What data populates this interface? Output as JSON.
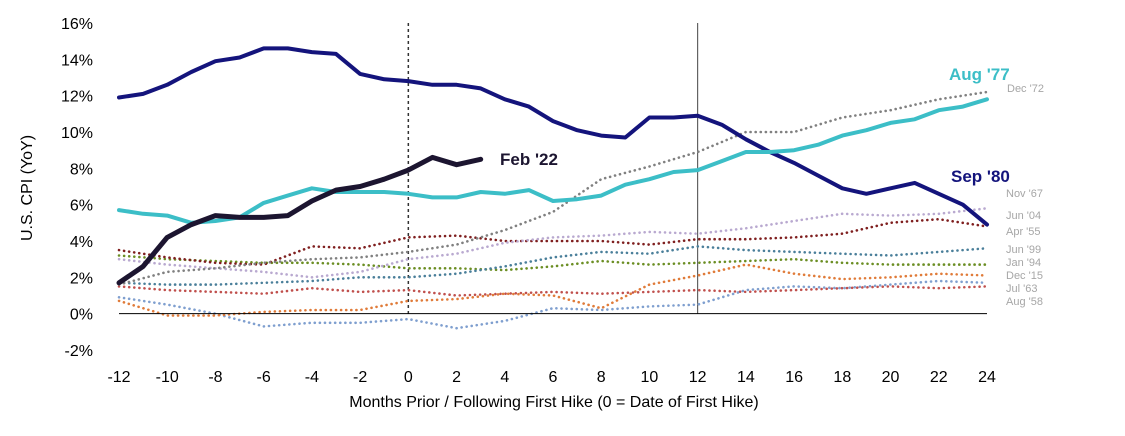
{
  "chart_data": {
    "type": "line",
    "xlabel": "Months Prior / Following First Hike (0 = Date of First Hike)",
    "ylabel": "U.S. CPI (YoY)",
    "xlim": [
      -12,
      24
    ],
    "ylim": [
      -2,
      16
    ],
    "x_ticks": [
      "-12",
      "-10",
      "-8",
      "-6",
      "-4",
      "-2",
      "0",
      "2",
      "4",
      "6",
      "8",
      "10",
      "12",
      "14",
      "16",
      "18",
      "20",
      "22",
      "24"
    ],
    "y_ticks": [
      "-2%",
      "0%",
      "2%",
      "4%",
      "6%",
      "8%",
      "10%",
      "12%",
      "14%",
      "16%"
    ],
    "vertical_markers": [
      0,
      12
    ],
    "grid": false,
    "series": [
      {
        "name": "Aug '58",
        "color": "#7f9fcf",
        "style": "dotted",
        "x": [
          -12,
          -10,
          -8,
          -6,
          -4,
          -2,
          0,
          2,
          4,
          6,
          8,
          10,
          12,
          14,
          16,
          18,
          20,
          22,
          24
        ],
        "y": [
          0.9,
          0.5,
          0.0,
          -0.7,
          -0.5,
          -0.5,
          -0.3,
          -0.8,
          -0.4,
          0.3,
          0.2,
          0.4,
          0.5,
          1.3,
          1.5,
          1.4,
          1.6,
          1.8,
          1.7
        ]
      },
      {
        "name": "Jul '63",
        "color": "#c0504d",
        "style": "dotted",
        "x": [
          -12,
          -10,
          -8,
          -6,
          -4,
          -2,
          0,
          2,
          4,
          6,
          8,
          10,
          12,
          14,
          16,
          18,
          20,
          22,
          24
        ],
        "y": [
          1.5,
          1.3,
          1.2,
          1.1,
          1.4,
          1.2,
          1.3,
          1.0,
          1.1,
          1.2,
          1.1,
          1.2,
          1.3,
          1.2,
          1.3,
          1.4,
          1.5,
          1.4,
          1.5
        ]
      },
      {
        "name": "Dec '15",
        "color": "#e07b39",
        "style": "dotted",
        "x": [
          -12,
          -10,
          -8,
          -6,
          -4,
          -2,
          0,
          2,
          4,
          6,
          8,
          10,
          12,
          14,
          16,
          18,
          20,
          22,
          24
        ],
        "y": [
          0.7,
          -0.1,
          -0.1,
          0.1,
          0.2,
          0.2,
          0.7,
          0.8,
          1.1,
          1.0,
          0.3,
          1.6,
          2.1,
          2.7,
          2.2,
          1.9,
          2.0,
          2.2,
          2.1
        ]
      },
      {
        "name": "Jan '94",
        "color": "#6b8e23",
        "style": "dotted",
        "x": [
          -12,
          -10,
          -8,
          -6,
          -4,
          -2,
          0,
          2,
          4,
          6,
          8,
          10,
          12,
          14,
          16,
          18,
          20,
          22,
          24
        ],
        "y": [
          3.2,
          3.0,
          2.9,
          2.8,
          2.8,
          2.7,
          2.5,
          2.5,
          2.4,
          2.6,
          2.9,
          2.7,
          2.8,
          2.9,
          3.0,
          2.8,
          2.7,
          2.7,
          2.7
        ]
      },
      {
        "name": "Jun '99",
        "color": "#4a7f9a",
        "style": "dotted",
        "x": [
          -12,
          -10,
          -8,
          -6,
          -4,
          -2,
          0,
          2,
          4,
          6,
          8,
          10,
          12,
          14,
          16,
          18,
          20,
          22,
          24
        ],
        "y": [
          1.7,
          1.6,
          1.6,
          1.7,
          1.8,
          2.0,
          2.0,
          2.2,
          2.6,
          3.1,
          3.4,
          3.3,
          3.7,
          3.5,
          3.4,
          3.3,
          3.2,
          3.4,
          3.6
        ]
      },
      {
        "name": "Apr '55",
        "color": "#7f1f1f",
        "style": "dotted",
        "x": [
          -12,
          -10,
          -8,
          -6,
          -4,
          -2,
          0,
          2,
          4,
          6,
          8,
          10,
          12,
          14,
          16,
          18,
          20,
          22,
          24
        ],
        "y": [
          3.5,
          3.1,
          2.8,
          2.7,
          3.7,
          3.6,
          4.2,
          4.3,
          4.0,
          4.0,
          4.0,
          3.8,
          4.1,
          4.1,
          4.2,
          4.4,
          5.0,
          5.2,
          4.8
        ]
      },
      {
        "name": "Jun '04",
        "color": "#b9a9d0",
        "style": "dotted",
        "x": [
          -12,
          -10,
          -8,
          -6,
          -4,
          -2,
          0,
          2,
          4,
          6,
          8,
          10,
          12,
          14,
          16,
          18,
          20,
          22,
          24
        ],
        "y": [
          3.0,
          2.7,
          2.5,
          2.3,
          2.0,
          2.3,
          3.0,
          3.3,
          3.9,
          4.2,
          4.3,
          4.5,
          4.4,
          4.7,
          5.1,
          5.5,
          5.4,
          5.5,
          5.8
        ]
      },
      {
        "name": "Nov '67",
        "color": "#808080",
        "style": "dotted",
        "x": [
          -12,
          -10,
          -8,
          -6,
          -4,
          -2,
          0,
          2,
          4,
          6,
          8,
          10,
          12,
          14,
          16,
          18,
          20,
          22,
          24
        ],
        "y": [
          1.6,
          2.3,
          2.5,
          2.8,
          3.0,
          3.1,
          3.4,
          3.8,
          4.6,
          5.6,
          7.4,
          8.1,
          8.9,
          10.0,
          10.0,
          10.8,
          11.2,
          11.8,
          12.2
        ]
      },
      {
        "name": "Sep '80",
        "color": "#14147c",
        "style": "solid",
        "width": 4,
        "x": [
          -12,
          -11,
          -10,
          -9,
          -8,
          -7,
          -6,
          -5,
          -4,
          -3,
          -2,
          -1,
          0,
          1,
          2,
          3,
          4,
          5,
          6,
          7,
          8,
          9,
          10,
          11,
          12,
          13,
          14,
          15,
          16,
          17,
          18,
          19,
          20,
          21,
          22,
          23,
          24
        ],
        "y": [
          11.9,
          12.1,
          12.6,
          13.3,
          13.9,
          14.1,
          14.6,
          14.6,
          14.4,
          14.3,
          13.2,
          12.9,
          12.8,
          12.6,
          12.6,
          12.4,
          11.8,
          11.4,
          10.6,
          10.1,
          9.8,
          9.7,
          10.8,
          10.8,
          10.9,
          10.4,
          9.6,
          8.9,
          8.3,
          7.6,
          6.9,
          6.6,
          6.9,
          7.2,
          6.6,
          6.0,
          4.9
        ]
      },
      {
        "name": "Aug '77",
        "color": "#3cbec7",
        "style": "solid",
        "width": 4,
        "x": [
          -12,
          -11,
          -10,
          -9,
          -8,
          -7,
          -6,
          -5,
          -4,
          -3,
          -2,
          -1,
          0,
          1,
          2,
          3,
          4,
          5,
          6,
          7,
          8,
          9,
          10,
          11,
          12,
          13,
          14,
          15,
          16,
          17,
          18,
          19,
          20,
          21,
          22,
          23,
          24
        ],
        "y": [
          5.7,
          5.5,
          5.4,
          5.0,
          5.1,
          5.3,
          6.1,
          6.5,
          6.9,
          6.7,
          6.7,
          6.7,
          6.6,
          6.4,
          6.4,
          6.7,
          6.6,
          6.8,
          6.2,
          6.3,
          6.5,
          7.1,
          7.4,
          7.8,
          7.9,
          8.4,
          8.9,
          8.9,
          9.0,
          9.3,
          9.8,
          10.1,
          10.5,
          10.7,
          11.2,
          11.4,
          11.8
        ]
      },
      {
        "name": "Feb '22",
        "color": "#1c1530",
        "style": "solid",
        "width": 5,
        "x": [
          -12,
          -11,
          -10,
          -9,
          -8,
          -7,
          -6,
          -5,
          -4,
          -3,
          -2,
          -1,
          0,
          1,
          2,
          3
        ],
        "y": [
          1.7,
          2.6,
          4.2,
          4.9,
          5.4,
          5.3,
          5.3,
          5.4,
          6.2,
          6.8,
          7.0,
          7.4,
          7.9,
          8.6,
          8.2,
          8.5
        ]
      }
    ],
    "labels": {
      "feb22": "Feb '22",
      "aug77": "Aug '77",
      "sep80": "Sep '80",
      "dec72": "Dec '72",
      "nov67": "Nov '67",
      "jun04": "Jun '04",
      "apr55": "Apr '55",
      "jun99": "Jun '99",
      "jan94": "Jan '94",
      "dec15": "Dec '15",
      "jul63": "Jul '63",
      "aug58": "Aug '58"
    }
  }
}
